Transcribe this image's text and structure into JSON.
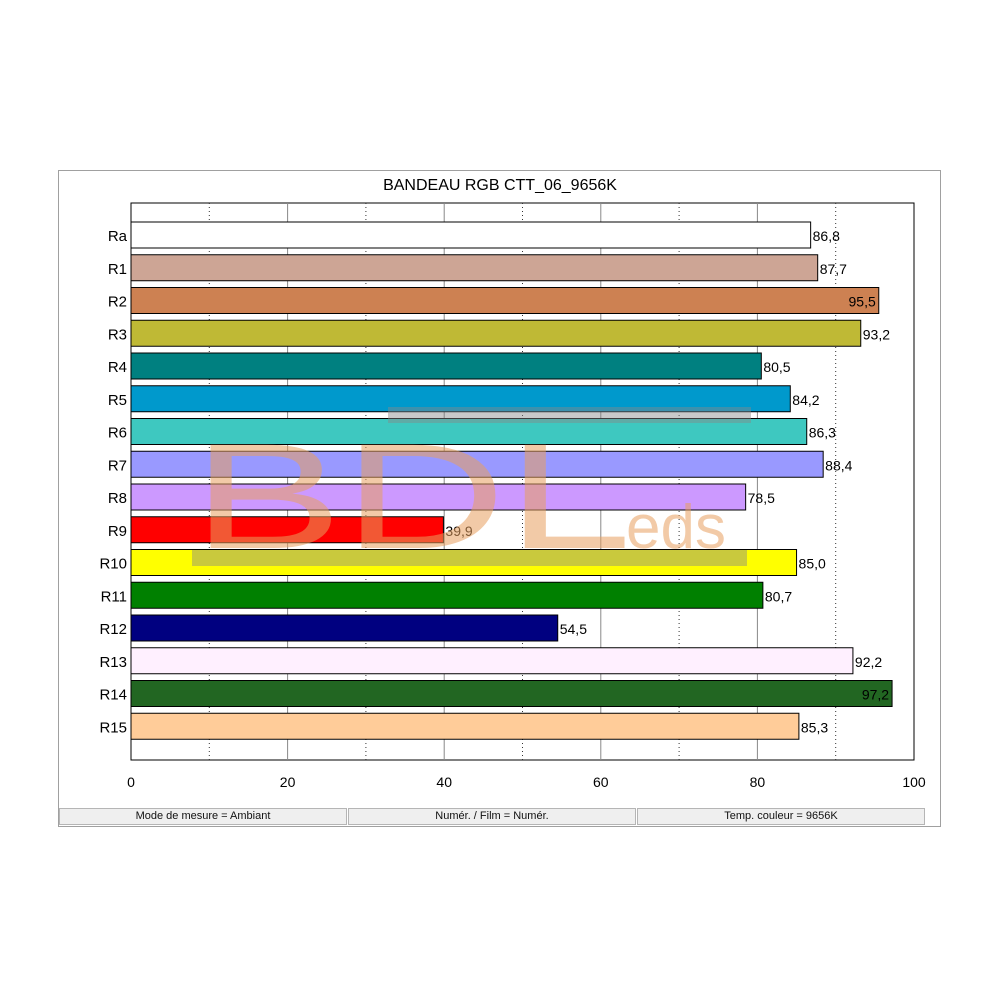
{
  "chart_data": {
    "type": "bar",
    "orientation": "horizontal",
    "title": "BANDEAU RGB CTT_06_9656K",
    "categories": [
      "Ra",
      "R1",
      "R2",
      "R3",
      "R4",
      "R5",
      "R6",
      "R7",
      "R8",
      "R9",
      "R10",
      "R11",
      "R12",
      "R13",
      "R14",
      "R15"
    ],
    "values": [
      86.8,
      87.7,
      95.5,
      93.2,
      80.5,
      84.2,
      86.3,
      88.4,
      78.5,
      39.9,
      85.0,
      80.7,
      54.5,
      92.2,
      97.2,
      85.3
    ],
    "value_labels": [
      "86,8",
      "87,7",
      "95,5",
      "93,2",
      "80,5",
      "84,2",
      "86,3",
      "88,4",
      "78,5",
      "39,9",
      "85,0",
      "80,7",
      "54,5",
      "92,2",
      "97,2",
      "85,3"
    ],
    "colors": [
      "#ffffff",
      "#cda595",
      "#cd8152",
      "#bfb935",
      "#008080",
      "#0099cc",
      "#3ec8c0",
      "#9999ff",
      "#cc99ff",
      "#ff0000",
      "#ffff00",
      "#008000",
      "#000080",
      "#fff0ff",
      "#226622",
      "#ffcc99"
    ],
    "xlim": [
      0,
      100
    ],
    "xticks": [
      "0",
      "20",
      "40",
      "60",
      "80",
      "100"
    ],
    "xtick_values": [
      0,
      20,
      40,
      60,
      80,
      100
    ],
    "grid": "vertical",
    "legend": "none"
  },
  "status": {
    "mode": "Mode de mesure = Ambiant",
    "film": "Numér. / Film = Numér.",
    "temp": "Temp. couleur = 9656K"
  },
  "watermark": {
    "main": "BDL",
    "sub": "eds"
  }
}
